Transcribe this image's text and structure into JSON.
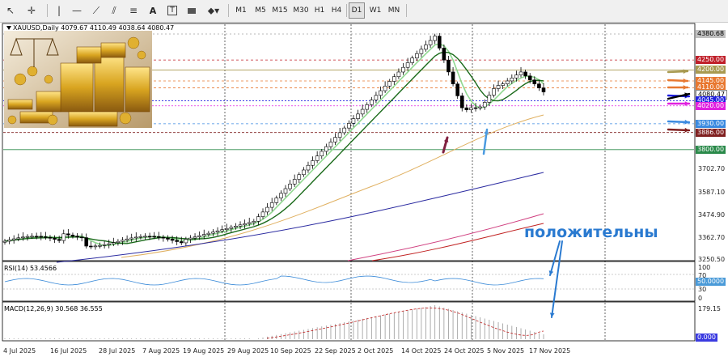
{
  "toolbar": {
    "timeframes": [
      "M1",
      "M5",
      "M15",
      "M30",
      "H1",
      "H4",
      "D1",
      "W1",
      "MN"
    ],
    "active_timeframe": "D1"
  },
  "chart": {
    "symbol_info": "XAUUSD,Daily 4079.67 4110.49 4038.64 4080.47",
    "price_axis": {
      "ticks": [
        "3702.70",
        "3587.10",
        "3474.90",
        "3362.70",
        "3250.50"
      ],
      "labels": [
        {
          "text": "4380.68",
          "color": "#c0c0c0",
          "text_color": "#000"
        },
        {
          "text": "4250.00",
          "color": "#c0202a",
          "text_color": "#fff"
        },
        {
          "text": "4200.00",
          "color": "#a89a50",
          "text_color": "#fff"
        },
        {
          "text": "4145.00",
          "color": "#e87830",
          "text_color": "#fff"
        },
        {
          "text": "4110.00",
          "color": "#e87830",
          "text_color": "#fff"
        },
        {
          "text": "4080.47",
          "color": "#ffffff",
          "text_color": "#000"
        },
        {
          "text": "4045.00",
          "color": "#2020e0",
          "text_color": "#fff"
        },
        {
          "text": "4020.00",
          "color": "#e020e0",
          "text_color": "#fff"
        },
        {
          "text": "3930.00",
          "color": "#3a8ae0",
          "text_color": "#fff"
        },
        {
          "text": "3886.00",
          "color": "#802020",
          "text_color": "#fff"
        },
        {
          "text": "3800.00",
          "color": "#2a8a4a",
          "text_color": "#fff"
        }
      ]
    },
    "date_axis": [
      "4 Jul 2025",
      "16 Jul 2025",
      "28 Jul 2025",
      "7 Aug 2025",
      "19 Aug 2025",
      "29 Aug 2025",
      "10 Sep 2025",
      "22 Sep 2025",
      "2 Oct 2025",
      "14 Oct 2025",
      "24 Oct 2025",
      "5 Nov 2025",
      "17 Nov 2025"
    ],
    "annotation": "положительны"
  },
  "rsi": {
    "label": "RSI(14) 53.4566",
    "ticks": [
      "100",
      "70",
      "30",
      "0"
    ],
    "current": "50.0000"
  },
  "macd": {
    "label": "MACD(12,26,9) 30.568 36.555",
    "ticks": [
      "179.15"
    ],
    "current": "0.000"
  },
  "colors": {
    "candle_up": "#ffffff",
    "candle_down": "#000000",
    "ma_fast": "#90d890",
    "ma_mid": "#1a6a1a",
    "ma_50": "#e0b060",
    "ma_100": "#2a2aa0",
    "ma_150": "#d04080",
    "ma_200": "#c02020",
    "annotation": "#2a7ad0"
  }
}
